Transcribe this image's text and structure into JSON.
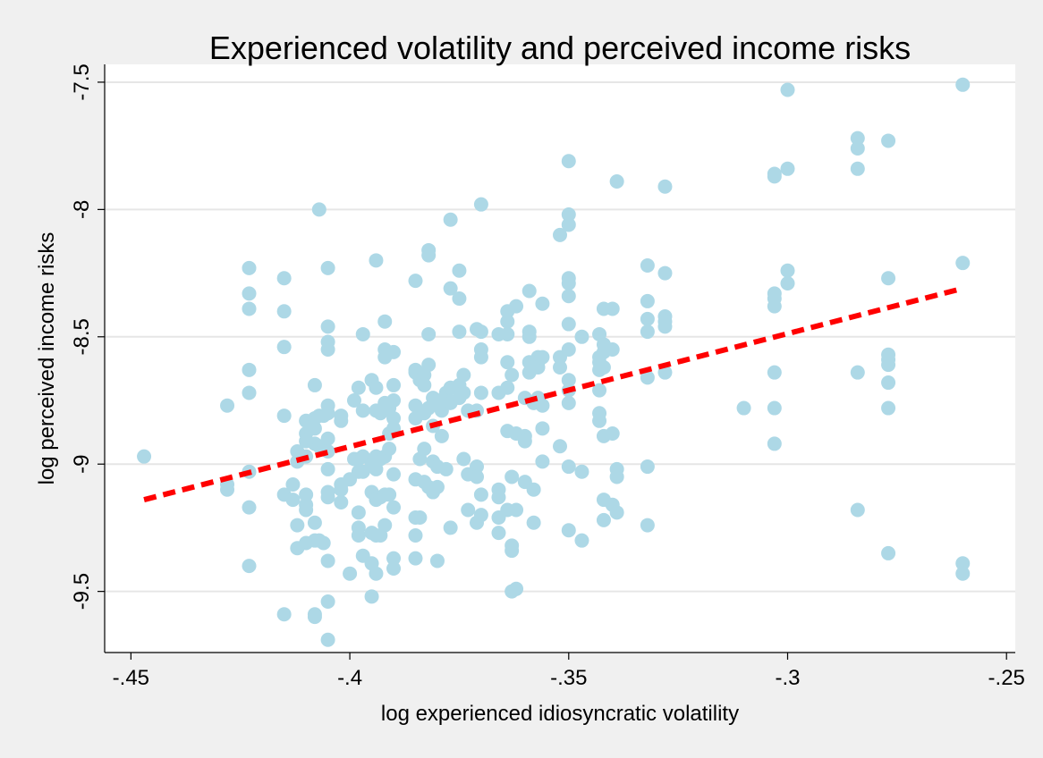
{
  "chart_data": {
    "type": "scatter",
    "title": "Experienced volatility and perceived income risks",
    "xlabel": "log experienced idiosyncratic volatility",
    "ylabel": "log perceived income risks",
    "xlim": [
      -0.456,
      -0.248
    ],
    "ylim": [
      -9.74,
      -7.43
    ],
    "x_ticks": [
      -0.45,
      -0.4,
      -0.35,
      -0.3,
      -0.25
    ],
    "x_tick_labels": [
      "-.45",
      "-.4",
      "-.35",
      "-.3",
      "-.25"
    ],
    "y_ticks": [
      -7.5,
      -8,
      -8.5,
      -9,
      -9.5
    ],
    "y_tick_labels": [
      "-7.5",
      "-8",
      "-8.5",
      "-9",
      "-9.5"
    ],
    "grid": "horizontal",
    "legend": "none",
    "point_color": "#add8e6",
    "fit_line_color": "#ff0000",
    "fit_line": {
      "x": [
        -0.447,
        -0.26
      ],
      "y": [
        -9.14,
        -8.31
      ]
    },
    "points": [
      [
        -0.447,
        -8.97
      ],
      [
        -0.428,
        -8.77
      ],
      [
        -0.428,
        -9.08
      ],
      [
        -0.428,
        -9.1
      ],
      [
        -0.423,
        -8.23
      ],
      [
        -0.423,
        -8.33
      ],
      [
        -0.423,
        -8.39
      ],
      [
        -0.423,
        -8.63
      ],
      [
        -0.423,
        -8.72
      ],
      [
        -0.423,
        -9.03
      ],
      [
        -0.423,
        -9.17
      ],
      [
        -0.423,
        -9.4
      ],
      [
        -0.415,
        -8.27
      ],
      [
        -0.415,
        -8.4
      ],
      [
        -0.415,
        -8.54
      ],
      [
        -0.415,
        -8.81
      ],
      [
        -0.415,
        -9.12
      ],
      [
        -0.415,
        -9.59
      ],
      [
        -0.413,
        -9.08
      ],
      [
        -0.413,
        -9.14
      ],
      [
        -0.412,
        -8.95
      ],
      [
        -0.412,
        -8.99
      ],
      [
        -0.412,
        -9.24
      ],
      [
        -0.412,
        -9.33
      ],
      [
        -0.41,
        -8.83
      ],
      [
        -0.41,
        -8.88
      ],
      [
        -0.41,
        -8.91
      ],
      [
        -0.41,
        -8.97
      ],
      [
        -0.41,
        -9.12
      ],
      [
        -0.41,
        -9.16
      ],
      [
        -0.41,
        -9.18
      ],
      [
        -0.41,
        -9.31
      ],
      [
        -0.408,
        -8.69
      ],
      [
        -0.408,
        -8.82
      ],
      [
        -0.408,
        -8.86
      ],
      [
        -0.408,
        -8.92
      ],
      [
        -0.408,
        -9.23
      ],
      [
        -0.408,
        -9.3
      ],
      [
        -0.408,
        -9.59
      ],
      [
        -0.408,
        -9.6
      ],
      [
        -0.407,
        -8.0
      ],
      [
        -0.407,
        -8.81
      ],
      [
        -0.407,
        -8.93
      ],
      [
        -0.407,
        -9.3
      ],
      [
        -0.406,
        -8.81
      ],
      [
        -0.406,
        -8.94
      ],
      [
        -0.406,
        -9.31
      ],
      [
        -0.405,
        -8.23
      ],
      [
        -0.405,
        -8.46
      ],
      [
        -0.405,
        -8.52
      ],
      [
        -0.405,
        -8.55
      ],
      [
        -0.405,
        -8.77
      ],
      [
        -0.405,
        -8.8
      ],
      [
        -0.405,
        -8.9
      ],
      [
        -0.405,
        -8.95
      ],
      [
        -0.405,
        -9.02
      ],
      [
        -0.405,
        -9.11
      ],
      [
        -0.405,
        -9.13
      ],
      [
        -0.405,
        -9.38
      ],
      [
        -0.405,
        -9.54
      ],
      [
        -0.405,
        -9.69
      ],
      [
        -0.402,
        -8.81
      ],
      [
        -0.402,
        -8.83
      ],
      [
        -0.402,
        -9.08
      ],
      [
        -0.402,
        -9.1
      ],
      [
        -0.402,
        -9.15
      ],
      [
        -0.4,
        -9.06
      ],
      [
        -0.4,
        -9.43
      ],
      [
        -0.399,
        -8.75
      ],
      [
        -0.399,
        -8.98
      ],
      [
        -0.398,
        -8.7
      ],
      [
        -0.398,
        -8.98
      ],
      [
        -0.398,
        -9.03
      ],
      [
        -0.398,
        -9.19
      ],
      [
        -0.398,
        -9.25
      ],
      [
        -0.398,
        -9.28
      ],
      [
        -0.397,
        -8.49
      ],
      [
        -0.397,
        -8.79
      ],
      [
        -0.397,
        -8.97
      ],
      [
        -0.397,
        -9.03
      ],
      [
        -0.397,
        -9.36
      ],
      [
        -0.395,
        -8.67
      ],
      [
        -0.395,
        -9.0
      ],
      [
        -0.395,
        -9.11
      ],
      [
        -0.395,
        -9.27
      ],
      [
        -0.395,
        -9.39
      ],
      [
        -0.395,
        -9.52
      ],
      [
        -0.394,
        -8.2
      ],
      [
        -0.394,
        -8.7
      ],
      [
        -0.394,
        -8.79
      ],
      [
        -0.394,
        -8.97
      ],
      [
        -0.394,
        -9.02
      ],
      [
        -0.394,
        -9.14
      ],
      [
        -0.394,
        -9.28
      ],
      [
        -0.394,
        -9.43
      ],
      [
        -0.393,
        -8.8
      ],
      [
        -0.393,
        -8.98
      ],
      [
        -0.393,
        -9.13
      ],
      [
        -0.393,
        -9.28
      ],
      [
        -0.392,
        -8.44
      ],
      [
        -0.392,
        -8.55
      ],
      [
        -0.392,
        -8.58
      ],
      [
        -0.392,
        -8.76
      ],
      [
        -0.392,
        -8.97
      ],
      [
        -0.392,
        -9.12
      ],
      [
        -0.392,
        -9.24
      ],
      [
        -0.391,
        -8.78
      ],
      [
        -0.391,
        -8.88
      ],
      [
        -0.391,
        -8.94
      ],
      [
        -0.391,
        -9.12
      ],
      [
        -0.39,
        -8.56
      ],
      [
        -0.39,
        -8.69
      ],
      [
        -0.39,
        -8.75
      ],
      [
        -0.39,
        -8.82
      ],
      [
        -0.39,
        -8.86
      ],
      [
        -0.39,
        -9.04
      ],
      [
        -0.39,
        -9.17
      ],
      [
        -0.39,
        -9.37
      ],
      [
        -0.39,
        -9.41
      ],
      [
        -0.385,
        -8.28
      ],
      [
        -0.385,
        -8.63
      ],
      [
        -0.385,
        -8.64
      ],
      [
        -0.385,
        -8.77
      ],
      [
        -0.385,
        -8.82
      ],
      [
        -0.385,
        -9.06
      ],
      [
        -0.385,
        -9.21
      ],
      [
        -0.385,
        -9.28
      ],
      [
        -0.385,
        -9.37
      ],
      [
        -0.384,
        -8.67
      ],
      [
        -0.384,
        -8.98
      ],
      [
        -0.384,
        -9.21
      ],
      [
        -0.383,
        -8.65
      ],
      [
        -0.383,
        -8.69
      ],
      [
        -0.383,
        -8.8
      ],
      [
        -0.383,
        -8.94
      ],
      [
        -0.383,
        -9.07
      ],
      [
        -0.382,
        -8.16
      ],
      [
        -0.382,
        -8.18
      ],
      [
        -0.382,
        -8.49
      ],
      [
        -0.382,
        -8.61
      ],
      [
        -0.382,
        -8.78
      ],
      [
        -0.382,
        -9.09
      ],
      [
        -0.381,
        -8.74
      ],
      [
        -0.381,
        -8.85
      ],
      [
        -0.381,
        -8.99
      ],
      [
        -0.381,
        -9.11
      ],
      [
        -0.38,
        -8.75
      ],
      [
        -0.38,
        -9.01
      ],
      [
        -0.38,
        -9.09
      ],
      [
        -0.38,
        -9.38
      ],
      [
        -0.379,
        -8.79
      ],
      [
        -0.379,
        -8.89
      ],
      [
        -0.378,
        -8.72
      ],
      [
        -0.378,
        -9.02
      ],
      [
        -0.377,
        -8.04
      ],
      [
        -0.377,
        -8.31
      ],
      [
        -0.377,
        -8.7
      ],
      [
        -0.377,
        -8.76
      ],
      [
        -0.377,
        -9.25
      ],
      [
        -0.375,
        -8.24
      ],
      [
        -0.375,
        -8.35
      ],
      [
        -0.375,
        -8.48
      ],
      [
        -0.375,
        -8.69
      ],
      [
        -0.375,
        -8.74
      ],
      [
        -0.374,
        -8.65
      ],
      [
        -0.374,
        -8.72
      ],
      [
        -0.374,
        -8.98
      ],
      [
        -0.373,
        -8.79
      ],
      [
        -0.373,
        -9.04
      ],
      [
        -0.373,
        -9.18
      ],
      [
        -0.371,
        -8.47
      ],
      [
        -0.371,
        -8.79
      ],
      [
        -0.371,
        -9.01
      ],
      [
        -0.371,
        -9.05
      ],
      [
        -0.371,
        -9.23
      ],
      [
        -0.37,
        -7.98
      ],
      [
        -0.37,
        -8.48
      ],
      [
        -0.37,
        -8.55
      ],
      [
        -0.37,
        -8.58
      ],
      [
        -0.37,
        -8.72
      ],
      [
        -0.37,
        -9.12
      ],
      [
        -0.37,
        -9.2
      ],
      [
        -0.366,
        -8.49
      ],
      [
        -0.366,
        -8.72
      ],
      [
        -0.366,
        -9.1
      ],
      [
        -0.366,
        -9.13
      ],
      [
        -0.366,
        -9.21
      ],
      [
        -0.366,
        -9.27
      ],
      [
        -0.364,
        -8.4
      ],
      [
        -0.364,
        -8.44
      ],
      [
        -0.364,
        -8.49
      ],
      [
        -0.364,
        -8.6
      ],
      [
        -0.364,
        -8.7
      ],
      [
        -0.364,
        -8.87
      ],
      [
        -0.364,
        -9.18
      ],
      [
        -0.363,
        -8.65
      ],
      [
        -0.363,
        -9.05
      ],
      [
        -0.363,
        -9.32
      ],
      [
        -0.363,
        -9.34
      ],
      [
        -0.363,
        -9.5
      ],
      [
        -0.362,
        -8.38
      ],
      [
        -0.362,
        -8.88
      ],
      [
        -0.362,
        -9.18
      ],
      [
        -0.362,
        -9.49
      ],
      [
        -0.36,
        -8.74
      ],
      [
        -0.36,
        -8.89
      ],
      [
        -0.36,
        -8.91
      ],
      [
        -0.36,
        -9.07
      ],
      [
        -0.359,
        -8.32
      ],
      [
        -0.359,
        -8.5
      ],
      [
        -0.359,
        -8.48
      ],
      [
        -0.359,
        -8.6
      ],
      [
        -0.359,
        -8.64
      ],
      [
        -0.358,
        -8.76
      ],
      [
        -0.358,
        -9.1
      ],
      [
        -0.358,
        -9.23
      ],
      [
        -0.357,
        -8.58
      ],
      [
        -0.357,
        -8.6
      ],
      [
        -0.357,
        -8.62
      ],
      [
        -0.357,
        -8.74
      ],
      [
        -0.356,
        -8.37
      ],
      [
        -0.356,
        -8.58
      ],
      [
        -0.356,
        -8.77
      ],
      [
        -0.356,
        -8.86
      ],
      [
        -0.356,
        -8.99
      ],
      [
        -0.352,
        -8.1
      ],
      [
        -0.352,
        -8.58
      ],
      [
        -0.352,
        -8.62
      ],
      [
        -0.352,
        -8.93
      ],
      [
        -0.35,
        -7.81
      ],
      [
        -0.35,
        -8.02
      ],
      [
        -0.35,
        -8.06
      ],
      [
        -0.35,
        -8.27
      ],
      [
        -0.35,
        -8.29
      ],
      [
        -0.35,
        -8.34
      ],
      [
        -0.35,
        -8.45
      ],
      [
        -0.35,
        -8.55
      ],
      [
        -0.35,
        -8.67
      ],
      [
        -0.35,
        -8.71
      ],
      [
        -0.35,
        -8.76
      ],
      [
        -0.35,
        -9.01
      ],
      [
        -0.35,
        -9.26
      ],
      [
        -0.347,
        -8.5
      ],
      [
        -0.347,
        -9.03
      ],
      [
        -0.347,
        -9.3
      ],
      [
        -0.343,
        -8.49
      ],
      [
        -0.343,
        -8.58
      ],
      [
        -0.343,
        -8.6
      ],
      [
        -0.343,
        -8.63
      ],
      [
        -0.343,
        -8.71
      ],
      [
        -0.343,
        -8.8
      ],
      [
        -0.343,
        -8.83
      ],
      [
        -0.342,
        -8.39
      ],
      [
        -0.342,
        -8.53
      ],
      [
        -0.342,
        -8.56
      ],
      [
        -0.342,
        -8.62
      ],
      [
        -0.342,
        -8.89
      ],
      [
        -0.342,
        -9.14
      ],
      [
        -0.342,
        -9.22
      ],
      [
        -0.34,
        -8.39
      ],
      [
        -0.34,
        -8.55
      ],
      [
        -0.34,
        -8.88
      ],
      [
        -0.34,
        -9.16
      ],
      [
        -0.339,
        -7.89
      ],
      [
        -0.339,
        -9.02
      ],
      [
        -0.339,
        -9.05
      ],
      [
        -0.339,
        -9.19
      ],
      [
        -0.332,
        -8.22
      ],
      [
        -0.332,
        -8.36
      ],
      [
        -0.332,
        -8.43
      ],
      [
        -0.332,
        -8.48
      ],
      [
        -0.332,
        -8.66
      ],
      [
        -0.332,
        -9.01
      ],
      [
        -0.332,
        -9.24
      ],
      [
        -0.328,
        -7.91
      ],
      [
        -0.328,
        -8.25
      ],
      [
        -0.328,
        -8.42
      ],
      [
        -0.328,
        -8.44
      ],
      [
        -0.328,
        -8.46
      ],
      [
        -0.328,
        -8.64
      ],
      [
        -0.31,
        -8.78
      ],
      [
        -0.303,
        -7.86
      ],
      [
        -0.303,
        -7.87
      ],
      [
        -0.303,
        -8.33
      ],
      [
        -0.303,
        -8.35
      ],
      [
        -0.303,
        -8.38
      ],
      [
        -0.303,
        -8.64
      ],
      [
        -0.303,
        -8.78
      ],
      [
        -0.303,
        -8.92
      ],
      [
        -0.3,
        -7.53
      ],
      [
        -0.3,
        -7.84
      ],
      [
        -0.3,
        -8.24
      ],
      [
        -0.3,
        -8.29
      ],
      [
        -0.284,
        -7.72
      ],
      [
        -0.284,
        -7.76
      ],
      [
        -0.284,
        -7.84
      ],
      [
        -0.284,
        -8.64
      ],
      [
        -0.284,
        -9.18
      ],
      [
        -0.277,
        -7.73
      ],
      [
        -0.277,
        -8.27
      ],
      [
        -0.277,
        -8.57
      ],
      [
        -0.277,
        -8.59
      ],
      [
        -0.277,
        -8.61
      ],
      [
        -0.277,
        -8.68
      ],
      [
        -0.277,
        -8.78
      ],
      [
        -0.277,
        -9.35
      ],
      [
        -0.26,
        -7.51
      ],
      [
        -0.26,
        -8.21
      ],
      [
        -0.26,
        -9.39
      ],
      [
        -0.26,
        -9.43
      ]
    ]
  }
}
